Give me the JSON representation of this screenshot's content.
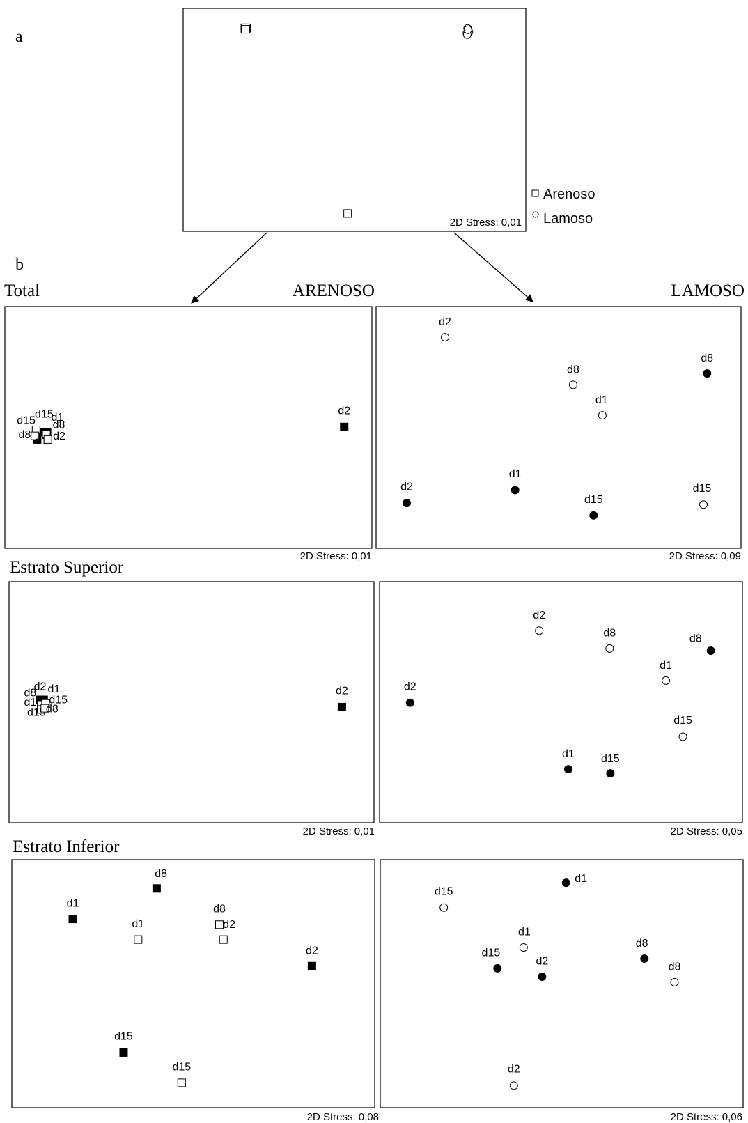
{
  "panel_letters": {
    "a": "a",
    "b": "b"
  },
  "legend": {
    "items": [
      {
        "label": "Arenoso",
        "marker": "open-square"
      },
      {
        "label": "Lamoso",
        "marker": "open-circle"
      }
    ]
  },
  "column_headers": {
    "left": "ARENOSO",
    "right": "LAMOSO"
  },
  "row_headers": [
    "Total",
    "Estrato Superior",
    "Estrato Inferior"
  ],
  "colors": {
    "ink": "#000000",
    "background": "#ffffff"
  },
  "chart_data": [
    {
      "id": "overview",
      "type": "scatter",
      "stress": "2D Stress: 0,01",
      "series": [
        {
          "name": "Arenoso",
          "marker": "open-square",
          "points": [
            {
              "x": 0.18,
              "y": 0.09
            },
            {
              "x": 0.182,
              "y": 0.092
            },
            {
              "x": 0.185,
              "y": 0.089
            },
            {
              "x": 0.181,
              "y": 0.087
            },
            {
              "x": 0.183,
              "y": 0.094
            },
            {
              "x": 0.48,
              "y": 0.92
            }
          ]
        },
        {
          "name": "Lamoso",
          "marker": "open-circle",
          "points": [
            {
              "x": 0.83,
              "y": 0.09
            },
            {
              "x": 0.832,
              "y": 0.1
            },
            {
              "x": 0.828,
              "y": 0.112
            },
            {
              "x": 0.834,
              "y": 0.106
            },
            {
              "x": 0.829,
              "y": 0.118
            },
            {
              "x": 0.831,
              "y": 0.096
            }
          ]
        }
      ]
    },
    {
      "id": "total-arenoso",
      "type": "scatter",
      "stress": "2D Stress: 0,01",
      "points": [
        {
          "x": 0.9245,
          "y": 0.498,
          "label": "d2",
          "fill": "filled",
          "marker": "square",
          "lx": 0.9245,
          "ly": 0.445
        },
        {
          "x": 0.115,
          "y": 0.52,
          "label": "d1",
          "fill": "filled",
          "marker": "square",
          "lx": 0.143,
          "ly": 0.473
        },
        {
          "x": 0.097,
          "y": 0.52,
          "label": "d15",
          "fill": "filled",
          "marker": "square",
          "lx": 0.107,
          "ly": 0.46
        },
        {
          "x": 0.088,
          "y": 0.55,
          "label": "d8",
          "fill": "filled",
          "marker": "square",
          "lx": 0.054,
          "ly": 0.545
        },
        {
          "x": 0.113,
          "y": 0.53,
          "label": "d8",
          "fill": "open",
          "marker": "square",
          "lx": 0.147,
          "ly": 0.503
        },
        {
          "x": 0.085,
          "y": 0.51,
          "label": "d15",
          "fill": "open",
          "marker": "square",
          "lx": 0.058,
          "ly": 0.485
        },
        {
          "x": 0.082,
          "y": 0.535,
          "label": "d1",
          "fill": "open",
          "marker": "square",
          "lx": 0.098,
          "ly": 0.57
        },
        {
          "x": 0.117,
          "y": 0.55,
          "label": "d2",
          "fill": "open",
          "marker": "square",
          "lx": 0.148,
          "ly": 0.55
        }
      ]
    },
    {
      "id": "total-lamoso",
      "type": "scatter",
      "stress": "2D Stress: 0,09",
      "points": [
        {
          "x": 0.189,
          "y": 0.127,
          "label": "d2",
          "fill": "open",
          "marker": "circle",
          "lx": 0.189,
          "ly": 0.078
        },
        {
          "x": 0.54,
          "y": 0.324,
          "label": "d8",
          "fill": "open",
          "marker": "circle",
          "lx": 0.54,
          "ly": 0.275
        },
        {
          "x": 0.62,
          "y": 0.45,
          "label": "d1",
          "fill": "open",
          "marker": "circle",
          "lx": 0.618,
          "ly": 0.401
        },
        {
          "x": 0.897,
          "y": 0.819,
          "label": "d15",
          "fill": "open",
          "marker": "circle",
          "lx": 0.893,
          "ly": 0.766
        },
        {
          "x": 0.907,
          "y": 0.277,
          "label": "d8",
          "fill": "filled",
          "marker": "circle",
          "lx": 0.907,
          "ly": 0.227
        },
        {
          "x": 0.381,
          "y": 0.759,
          "label": "d1",
          "fill": "filled",
          "marker": "circle",
          "lx": 0.381,
          "ly": 0.706
        },
        {
          "x": 0.084,
          "y": 0.813,
          "label": "d2",
          "fill": "filled",
          "marker": "circle",
          "lx": 0.084,
          "ly": 0.759
        },
        {
          "x": 0.596,
          "y": 0.864,
          "label": "d15",
          "fill": "filled",
          "marker": "circle",
          "lx": 0.596,
          "ly": 0.813
        }
      ]
    },
    {
      "id": "superior-arenoso",
      "type": "scatter",
      "stress": "2D Stress: 0,01",
      "points": [
        {
          "x": 0.912,
          "y": 0.52,
          "label": "d2",
          "fill": "filled",
          "marker": "square",
          "lx": 0.912,
          "ly": 0.467
        },
        {
          "x": 0.09,
          "y": 0.495,
          "label": "d2",
          "fill": "filled",
          "marker": "square",
          "lx": 0.085,
          "ly": 0.45
        },
        {
          "x": 0.095,
          "y": 0.49,
          "label": "d1",
          "fill": "filled",
          "marker": "square",
          "lx": 0.123,
          "ly": 0.46
        },
        {
          "x": 0.085,
          "y": 0.49,
          "label": "d8",
          "fill": "filled",
          "marker": "square",
          "lx": 0.058,
          "ly": 0.475
        },
        {
          "x": 0.088,
          "y": 0.51,
          "label": "d1",
          "fill": "open",
          "marker": "square",
          "lx": 0.058,
          "ly": 0.515
        },
        {
          "x": 0.1,
          "y": 0.505,
          "label": "d15",
          "fill": "open",
          "marker": "square",
          "lx": 0.135,
          "ly": 0.505
        },
        {
          "x": 0.088,
          "y": 0.53,
          "label": "d15",
          "fill": "open",
          "marker": "square",
          "lx": 0.075,
          "ly": 0.557
        },
        {
          "x": 0.098,
          "y": 0.525,
          "label": "d8",
          "fill": "open",
          "marker": "square",
          "lx": 0.118,
          "ly": 0.542
        }
      ]
    },
    {
      "id": "superior-lamoso",
      "type": "scatter",
      "stress": "2D Stress: 0,05",
      "points": [
        {
          "x": 0.44,
          "y": 0.203,
          "label": "d2",
          "fill": "open",
          "marker": "circle",
          "lx": 0.44,
          "ly": 0.153
        },
        {
          "x": 0.634,
          "y": 0.277,
          "label": "d8",
          "fill": "open",
          "marker": "circle",
          "lx": 0.634,
          "ly": 0.227
        },
        {
          "x": 0.789,
          "y": 0.41,
          "label": "d1",
          "fill": "open",
          "marker": "circle",
          "lx": 0.789,
          "ly": 0.361
        },
        {
          "x": 0.836,
          "y": 0.643,
          "label": "d15",
          "fill": "open",
          "marker": "circle",
          "lx": 0.836,
          "ly": 0.59
        },
        {
          "x": 0.913,
          "y": 0.286,
          "label": "d8",
          "fill": "filled",
          "marker": "circle",
          "lx": 0.871,
          "ly": 0.25
        },
        {
          "x": 0.084,
          "y": 0.502,
          "label": "d2",
          "fill": "filled",
          "marker": "circle",
          "lx": 0.084,
          "ly": 0.45
        },
        {
          "x": 0.52,
          "y": 0.778,
          "label": "d1",
          "fill": "filled",
          "marker": "circle",
          "lx": 0.52,
          "ly": 0.729
        },
        {
          "x": 0.636,
          "y": 0.795,
          "label": "d15",
          "fill": "filled",
          "marker": "circle",
          "lx": 0.636,
          "ly": 0.748
        }
      ]
    },
    {
      "id": "inferior-arenoso",
      "type": "scatter",
      "stress": "2D Stress: 0,08",
      "points": [
        {
          "x": 0.399,
          "y": 0.116,
          "label": "d8",
          "fill": "filled",
          "marker": "square",
          "lx": 0.411,
          "ly": 0.07
        },
        {
          "x": 0.168,
          "y": 0.239,
          "label": "d1",
          "fill": "filled",
          "marker": "square",
          "lx": 0.168,
          "ly": 0.189
        },
        {
          "x": 0.827,
          "y": 0.429,
          "label": "d2",
          "fill": "filled",
          "marker": "square",
          "lx": 0.827,
          "ly": 0.38
        },
        {
          "x": 0.308,
          "y": 0.778,
          "label": "d15",
          "fill": "filled",
          "marker": "square",
          "lx": 0.308,
          "ly": 0.726
        },
        {
          "x": 0.348,
          "y": 0.322,
          "label": "d1",
          "fill": "open",
          "marker": "square",
          "lx": 0.348,
          "ly": 0.273
        },
        {
          "x": 0.572,
          "y": 0.262,
          "label": "d8",
          "fill": "open",
          "marker": "square",
          "lx": 0.572,
          "ly": 0.212
        },
        {
          "x": 0.583,
          "y": 0.322,
          "label": "d2",
          "fill": "open",
          "marker": "square",
          "lx": 0.599,
          "ly": 0.275
        },
        {
          "x": 0.468,
          "y": 0.9,
          "label": "d15",
          "fill": "open",
          "marker": "square",
          "lx": 0.468,
          "ly": 0.85
        }
      ]
    },
    {
      "id": "inferior-lamoso",
      "type": "scatter",
      "stress": "2D Stress: 0,06",
      "points": [
        {
          "x": 0.175,
          "y": 0.193,
          "label": "d15",
          "fill": "open",
          "marker": "circle",
          "lx": 0.175,
          "ly": 0.142
        },
        {
          "x": 0.395,
          "y": 0.354,
          "label": "d1",
          "fill": "open",
          "marker": "circle",
          "lx": 0.397,
          "ly": 0.305
        },
        {
          "x": 0.811,
          "y": 0.494,
          "label": "d8",
          "fill": "open",
          "marker": "circle",
          "lx": 0.811,
          "ly": 0.445
        },
        {
          "x": 0.368,
          "y": 0.911,
          "label": "d2",
          "fill": "open",
          "marker": "circle",
          "lx": 0.368,
          "ly": 0.858
        },
        {
          "x": 0.512,
          "y": 0.093,
          "label": "d1",
          "fill": "filled",
          "marker": "circle",
          "lx": 0.553,
          "ly": 0.09
        },
        {
          "x": 0.728,
          "y": 0.399,
          "label": "d8",
          "fill": "filled",
          "marker": "circle",
          "lx": 0.721,
          "ly": 0.351
        },
        {
          "x": 0.323,
          "y": 0.438,
          "label": "d15",
          "fill": "filled",
          "marker": "circle",
          "lx": 0.305,
          "ly": 0.389
        },
        {
          "x": 0.446,
          "y": 0.472,
          "label": "d2",
          "fill": "filled",
          "marker": "circle",
          "lx": 0.446,
          "ly": 0.423
        }
      ]
    }
  ]
}
